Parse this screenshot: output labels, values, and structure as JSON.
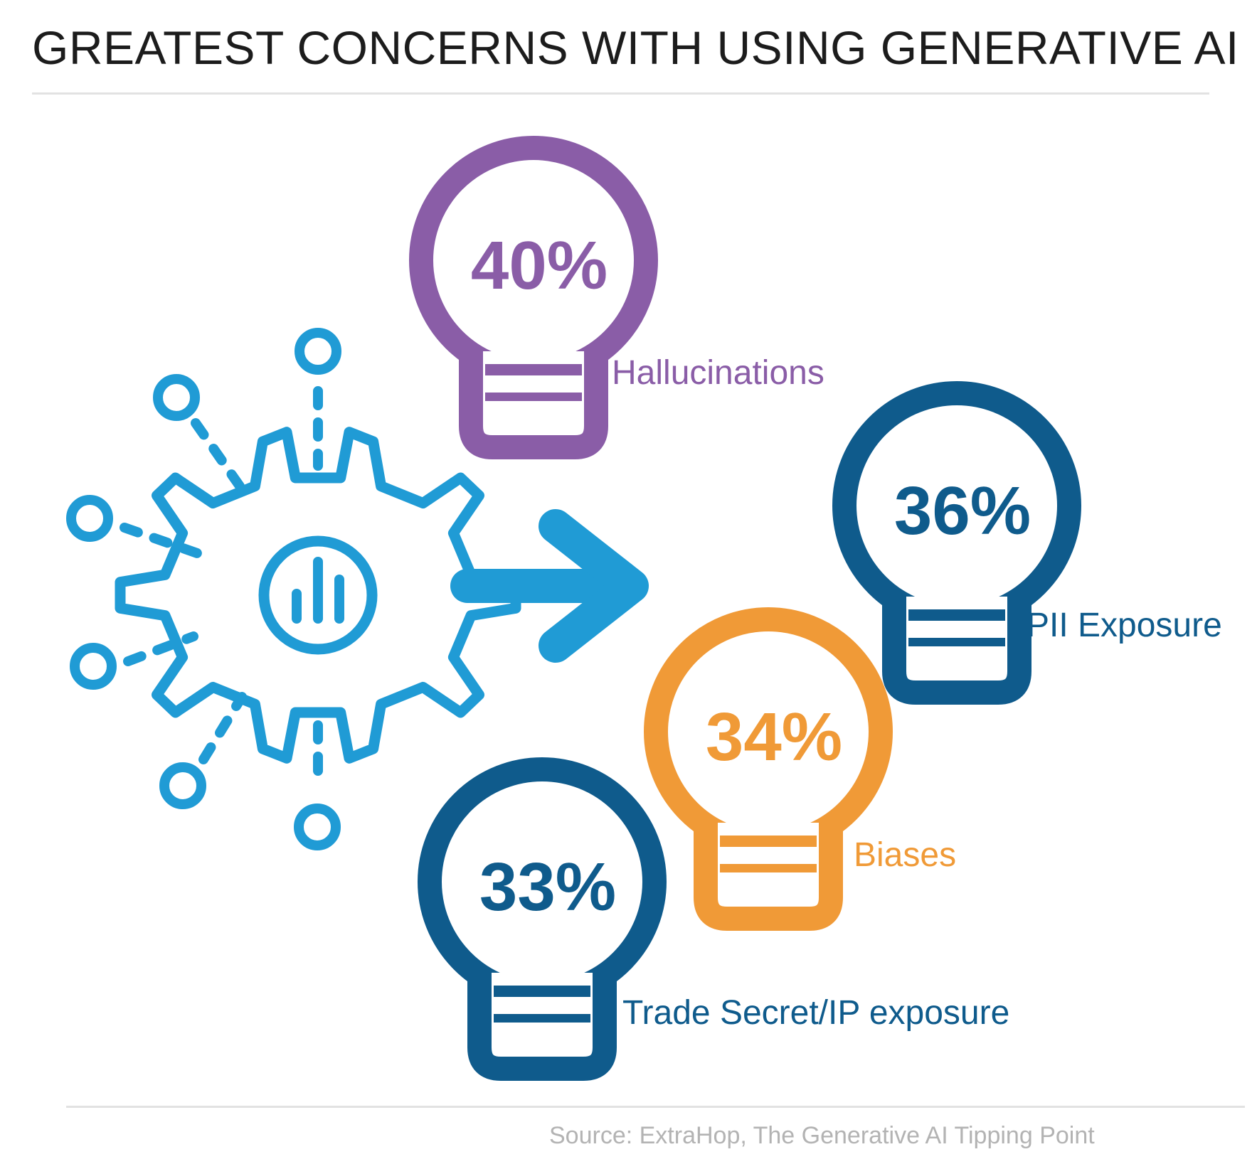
{
  "title": "GREATEST CONCERNS WITH USING GENERATIVE AI",
  "source": "Source: ExtraHop, The Generative AI Tipping Point",
  "colors": {
    "icon_blue": "#209bd5",
    "purple": "#8a5da7",
    "navy": "#0f5b8c",
    "orange": "#f09a37"
  },
  "icons": [
    "gear-chart-icon",
    "arrow-right-icon",
    "lightbulb-icon"
  ],
  "chart_data": {
    "type": "bar",
    "title": "GREATEST CONCERNS WITH USING GENERATIVE AI",
    "categories": [
      "Hallucinations",
      "PII Exposure",
      "Biases",
      "Trade Secret/IP exposure"
    ],
    "values": [
      40,
      36,
      34,
      33
    ],
    "value_labels": [
      "40%",
      "36%",
      "34%",
      "33%"
    ],
    "unit": "%",
    "colors": [
      "#8a5da7",
      "#0f5b8c",
      "#f09a37",
      "#0f5b8c"
    ]
  }
}
